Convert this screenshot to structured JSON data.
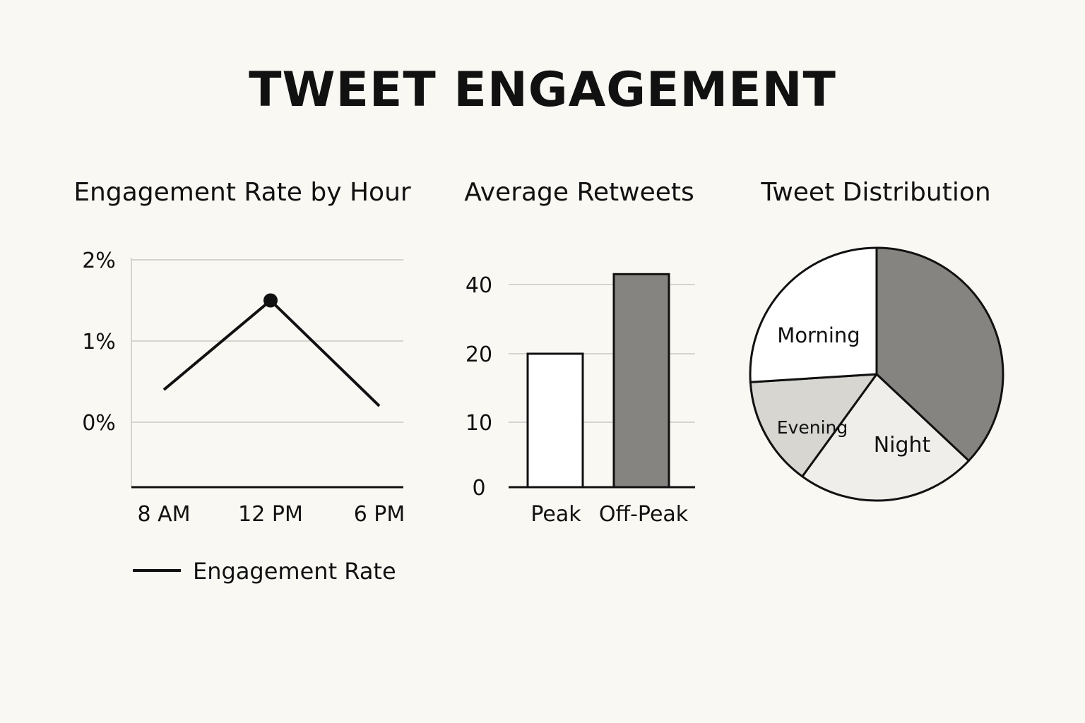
{
  "title": "TWEET ENGAGEMENT",
  "chart_data": [
    {
      "type": "line",
      "title": "Engagement Rate by Hour",
      "categories": [
        "8 AM",
        "12 PM",
        "6 PM"
      ],
      "series": [
        {
          "name": "Engagement Rate",
          "values": [
            0.4,
            1.5,
            0.2
          ]
        }
      ],
      "y_ticks": [
        {
          "value": 0,
          "label": "0%"
        },
        {
          "value": 1,
          "label": "1%"
        },
        {
          "value": 2,
          "label": "2%"
        }
      ],
      "highlight_index": 1,
      "ylim": [
        -0.8,
        2
      ],
      "legend": "bottom-left",
      "grid": true
    },
    {
      "type": "bar",
      "title": "Average Retweets",
      "categories": [
        "Peak",
        "Off-Peak"
      ],
      "values": [
        20,
        43
      ],
      "y_ticks": [
        {
          "value": 0,
          "label": "0"
        },
        {
          "value": 10,
          "label": "10"
        },
        {
          "value": 20,
          "label": "20"
        },
        {
          "value": 40,
          "label": "40"
        }
      ],
      "bar_colors": [
        "#ffffff",
        "#858480"
      ],
      "grid": true
    },
    {
      "type": "pie",
      "title": "Tweet Distribution",
      "slices": [
        {
          "label": "",
          "value": 37,
          "color": "#858480"
        },
        {
          "label": "Night",
          "value": 23,
          "color": "#efeeea"
        },
        {
          "label": "Evening",
          "value": 14,
          "color": "#d7d6d0"
        },
        {
          "label": "Morning",
          "value": 26,
          "color": "#ffffff"
        }
      ]
    }
  ]
}
